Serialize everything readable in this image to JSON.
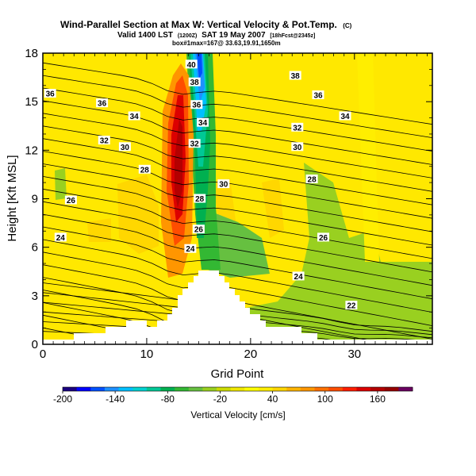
{
  "header": {
    "title": "Wind-Parallel Section at Max W: Vertical Velocity & Pot.Temp.",
    "title_unit": "(C)",
    "line2_pre": "Valid 1400 LST",
    "line2_small1": "(1200Z)",
    "line2_mid": "SAT 19 May 2007",
    "line2_small2": "[18hFcst@2345z]",
    "line3": "box#1max=167@ 33.63,19.91,1650m"
  },
  "chart_data": {
    "type": "heatmap",
    "xlabel": "Grid Point",
    "ylabel": "Height [Kft MSL]",
    "xlim": [
      0,
      37.5
    ],
    "ylim": [
      0,
      18
    ],
    "x_ticks": [
      0,
      10,
      20,
      30
    ],
    "y_ticks": [
      0,
      3,
      6,
      9,
      12,
      15,
      18
    ],
    "colorbar": {
      "label": "Vertical Velocity [cm/s]",
      "range": [
        -200,
        200
      ],
      "tick_values": [
        -200,
        -140,
        -80,
        -20,
        40,
        100,
        160
      ],
      "colors": [
        "#1a0080",
        "#0000ff",
        "#0050ff",
        "#1e90ff",
        "#00bfff",
        "#00d2d2",
        "#00c896",
        "#00b050",
        "#33b833",
        "#66c040",
        "#99d020",
        "#ccdc00",
        "#f0e800",
        "#ffff00",
        "#ffee00",
        "#ffd700",
        "#ffb400",
        "#ff9600",
        "#ff7000",
        "#ff4d00",
        "#ff1e00",
        "#dc0000",
        "#b40000",
        "#960000",
        "#6a0060"
      ]
    },
    "contour_labels": [
      {
        "x": 0.7,
        "y": 15.5,
        "text": "36"
      },
      {
        "x": 5.7,
        "y": 14.9,
        "text": "36"
      },
      {
        "x": 8.8,
        "y": 14.1,
        "text": "34"
      },
      {
        "x": 5.9,
        "y": 12.6,
        "text": "32"
      },
      {
        "x": 7.9,
        "y": 12.2,
        "text": "30"
      },
      {
        "x": 9.8,
        "y": 10.8,
        "text": "28"
      },
      {
        "x": 2.7,
        "y": 8.9,
        "text": "26"
      },
      {
        "x": 1.7,
        "y": 6.6,
        "text": "24"
      },
      {
        "x": 14.3,
        "y": 17.3,
        "text": "40"
      },
      {
        "x": 14.6,
        "y": 16.2,
        "text": "38"
      },
      {
        "x": 14.8,
        "y": 14.8,
        "text": "36"
      },
      {
        "x": 15.4,
        "y": 13.7,
        "text": "34"
      },
      {
        "x": 14.6,
        "y": 12.4,
        "text": "32"
      },
      {
        "x": 17.4,
        "y": 9.9,
        "text": "30"
      },
      {
        "x": 15.1,
        "y": 9.0,
        "text": "28"
      },
      {
        "x": 15.0,
        "y": 7.1,
        "text": "26"
      },
      {
        "x": 14.2,
        "y": 5.9,
        "text": "24"
      },
      {
        "x": 24.3,
        "y": 16.6,
        "text": "38"
      },
      {
        "x": 26.5,
        "y": 15.4,
        "text": "36"
      },
      {
        "x": 29.1,
        "y": 14.1,
        "text": "34"
      },
      {
        "x": 24.5,
        "y": 13.4,
        "text": "32"
      },
      {
        "x": 24.5,
        "y": 12.2,
        "text": "30"
      },
      {
        "x": 25.9,
        "y": 10.2,
        "text": "28"
      },
      {
        "x": 27.0,
        "y": 6.6,
        "text": "26"
      },
      {
        "x": 24.6,
        "y": 4.2,
        "text": "24"
      },
      {
        "x": 29.7,
        "y": 2.4,
        "text": "22"
      }
    ]
  }
}
